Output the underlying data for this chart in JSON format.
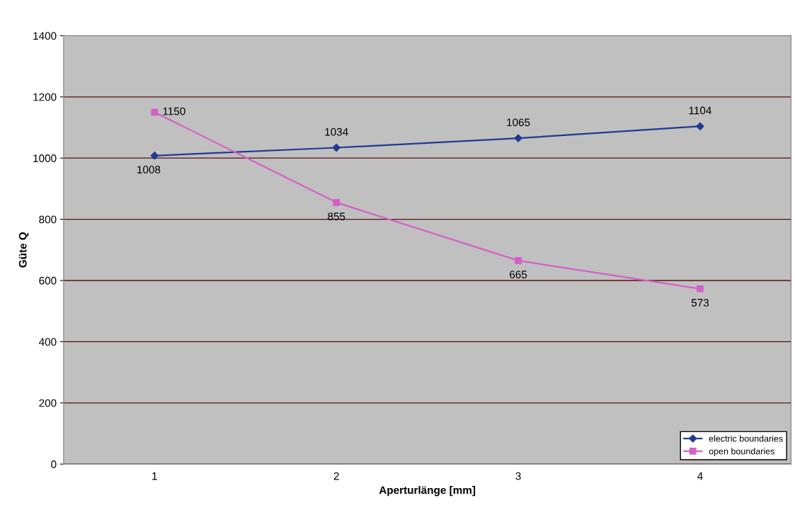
{
  "chart_data": {
    "type": "line",
    "xlabel": "Aperturlänge [mm]",
    "ylabel": "Güte Q",
    "categories": [
      "1",
      "2",
      "3",
      "4"
    ],
    "series": [
      {
        "name": "electric boundaries",
        "color": "#1f3a93",
        "marker": "diamond",
        "values": [
          1008,
          1034,
          1065,
          1104
        ]
      },
      {
        "name": "open boundaries",
        "color": "#d45fc8",
        "marker": "square",
        "values": [
          1150,
          855,
          665,
          573
        ]
      }
    ],
    "ylim": [
      0,
      1400
    ],
    "yticks": [
      0,
      200,
      400,
      600,
      800,
      1000,
      1200,
      1400
    ],
    "grid": "y",
    "legend": "bottom right",
    "data_labels": true
  }
}
